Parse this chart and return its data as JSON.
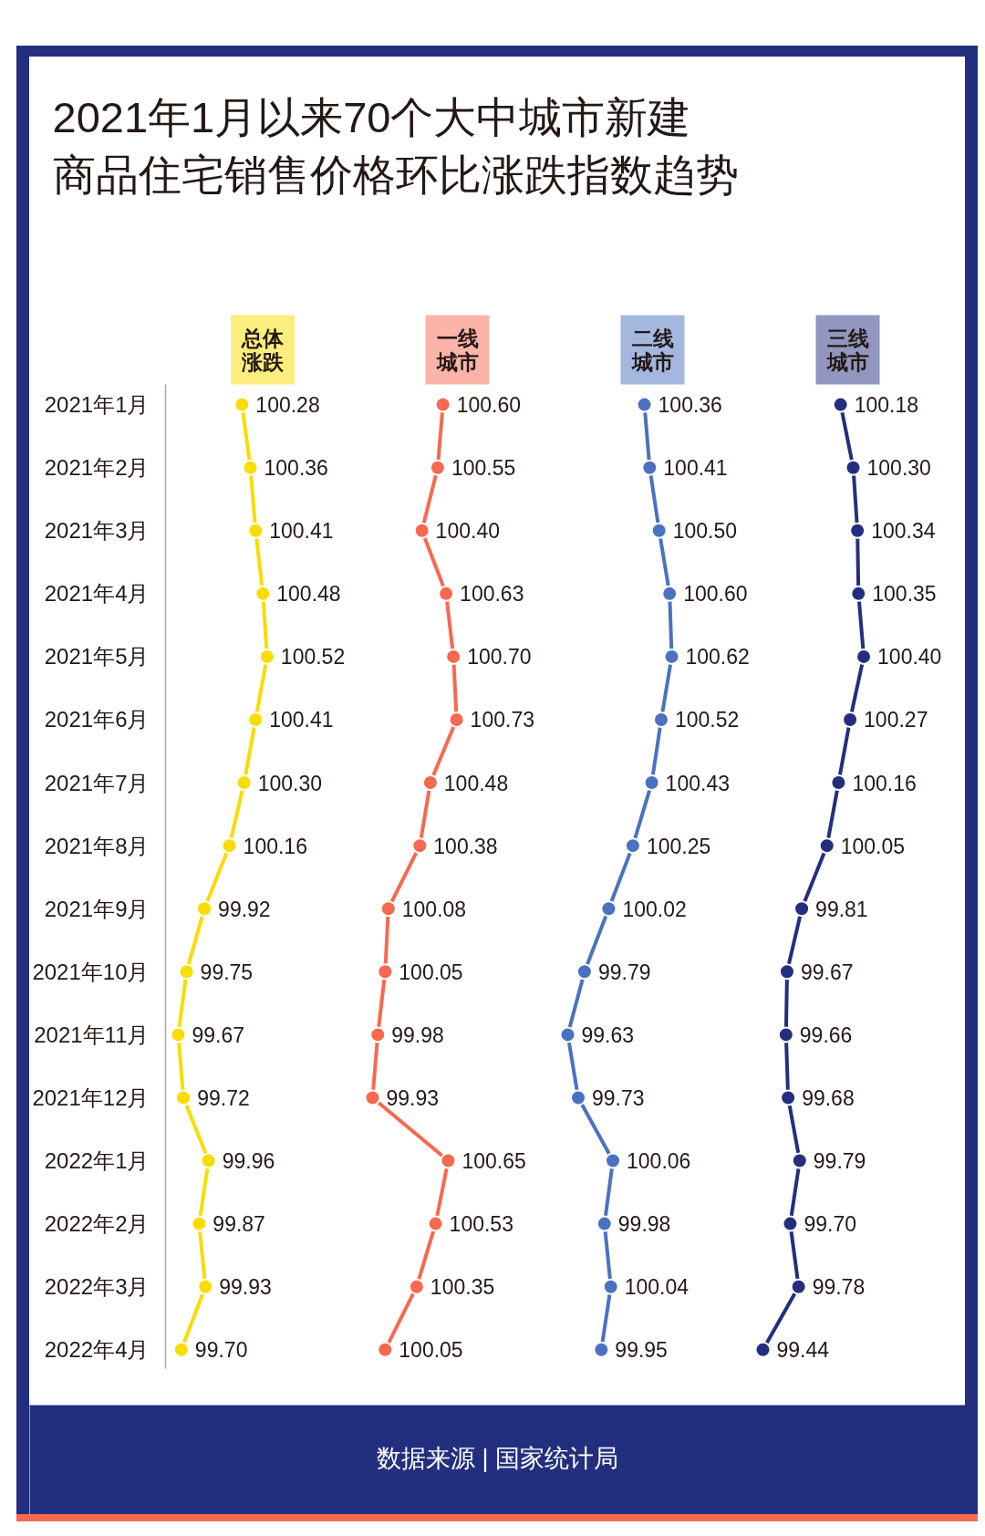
{
  "chart_data": [
    {
      "type": "line",
      "orientation": "horizontal",
      "title": "2021年1月以来70个大中城市新建商品住宅销售价格环比涨跌指数趋势",
      "annotations": [
        "数据来源 | 国家统计局"
      ],
      "categories": [
        "2021年1月",
        "2021年2月",
        "2021年3月",
        "2021年4月",
        "2021年5月",
        "2021年6月",
        "2021年7月",
        "2021年8月",
        "2021年9月",
        "2021年10月",
        "2021年11月",
        "2021年12月",
        "2022年1月",
        "2022年2月",
        "2022年3月",
        "2022年4月"
      ],
      "series": [
        {
          "name": "总体涨跌",
          "color": "#f9dc00",
          "values": [
            100.28,
            100.36,
            100.41,
            100.48,
            100.52,
            100.41,
            100.3,
            100.16,
            99.92,
            99.75,
            99.67,
            99.72,
            99.96,
            99.87,
            99.93,
            99.7
          ],
          "value_labels": [
            "100.28",
            "100.36",
            "100.41",
            "100.48",
            "100.52",
            "100.41",
            "100.30",
            "100.16",
            "99.92",
            "99.75",
            "99.67",
            "99.72",
            "99.96",
            "99.87",
            "99.93",
            "99.70"
          ]
        }
      ],
      "marker": "circle",
      "tick_labels": "y"
    },
    {
      "type": "line",
      "orientation": "horizontal",
      "categories": [
        null,
        null,
        null,
        null,
        null,
        null,
        null,
        null,
        null,
        null,
        null,
        null,
        null,
        null,
        null,
        null
      ],
      "series": [
        {
          "name": "一线城市",
          "color": "#f7694f",
          "values": [
            100.6,
            100.55,
            100.4,
            100.63,
            100.7,
            100.73,
            100.48,
            100.38,
            100.08,
            100.05,
            99.98,
            99.93,
            100.65,
            100.53,
            100.35,
            100.05
          ],
          "value_labels": [
            "100.60",
            "100.55",
            "100.40",
            "100.63",
            "100.70",
            "100.73",
            "100.48",
            "100.38",
            "100.08",
            "100.05",
            "99.98",
            "99.93",
            "100.65",
            "100.53",
            "100.35",
            "100.05"
          ]
        }
      ],
      "marker": "circle",
      "tick_labels": false
    },
    {
      "type": "line",
      "orientation": "horizontal",
      "categories": [
        null,
        null,
        null,
        null,
        null,
        null,
        null,
        null,
        null,
        null,
        null,
        null,
        null,
        null,
        null,
        null
      ],
      "series": [
        {
          "name": "二线城市",
          "color": "#4a72c0",
          "values": [
            100.36,
            100.41,
            100.5,
            100.6,
            100.62,
            100.52,
            100.43,
            100.25,
            100.02,
            99.79,
            99.63,
            99.73,
            100.06,
            99.98,
            100.04,
            99.95
          ],
          "value_labels": [
            "100.36",
            "100.41",
            "100.50",
            "100.60",
            "100.62",
            "100.52",
            "100.43",
            "100.25",
            "100.02",
            "99.79",
            "99.63",
            "99.73",
            "100.06",
            "99.98",
            "100.04",
            "99.95"
          ]
        }
      ],
      "marker": "circle",
      "tick_labels": false
    },
    {
      "type": "line",
      "orientation": "horizontal",
      "categories": [
        null,
        null,
        null,
        null,
        null,
        null,
        null,
        null,
        null,
        null,
        null,
        null,
        null,
        null,
        null,
        null
      ],
      "series": [
        {
          "name": "三线城市",
          "color": "#232f7e",
          "values": [
            100.18,
            100.3,
            100.34,
            100.35,
            100.4,
            100.27,
            100.16,
            100.05,
            99.81,
            99.67,
            99.66,
            99.68,
            99.79,
            99.7,
            99.78,
            99.44
          ],
          "value_labels": [
            "100.18",
            "100.30",
            "100.34",
            "100.35",
            "100.40",
            "100.27",
            "100.16",
            "100.05",
            "99.81",
            "99.67",
            "99.66",
            "99.68",
            "99.79",
            "99.70",
            "99.78",
            "99.44"
          ]
        }
      ],
      "marker": "circle",
      "tick_labels": false
    }
  ]
}
